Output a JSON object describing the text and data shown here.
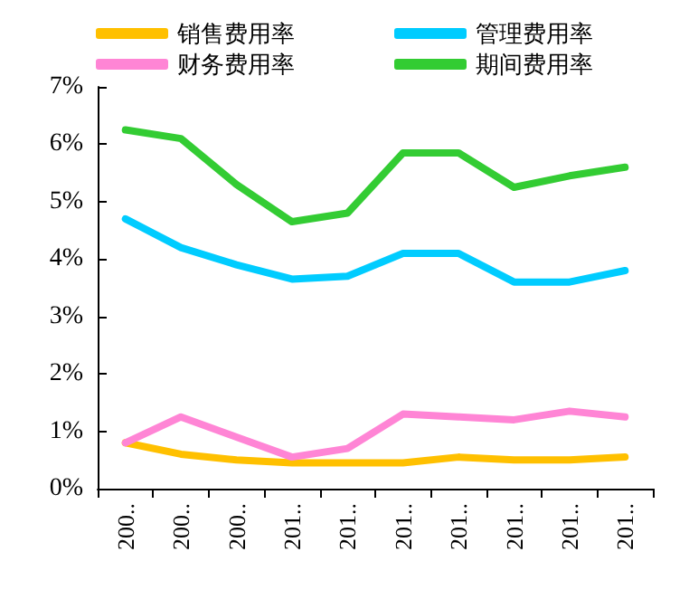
{
  "chart_data": {
    "type": "line",
    "categories": [
      "200..",
      "200..",
      "200..",
      "201..",
      "201..",
      "201..",
      "201..",
      "201..",
      "201..",
      "201.."
    ],
    "series": [
      {
        "name": "销售费用率",
        "color": "#ffc000",
        "values": [
          0.8,
          0.6,
          0.5,
          0.45,
          0.45,
          0.45,
          0.55,
          0.5,
          0.5,
          0.55
        ]
      },
      {
        "name": "管理费用率",
        "color": "#00ccff",
        "values": [
          4.7,
          4.2,
          3.9,
          3.65,
          3.7,
          4.1,
          4.1,
          3.6,
          3.6,
          3.8
        ]
      },
      {
        "name": "财务费用率",
        "color": "#ff85d5",
        "values": [
          0.8,
          1.25,
          0.9,
          0.55,
          0.7,
          1.3,
          1.25,
          1.2,
          1.35,
          1.25
        ]
      },
      {
        "name": "期间费用率",
        "color": "#33cc33",
        "values": [
          6.25,
          6.1,
          5.3,
          4.65,
          4.8,
          5.85,
          5.85,
          5.25,
          5.45,
          5.6
        ]
      }
    ],
    "ylim": [
      0,
      7
    ],
    "yticks": [
      {
        "value": 0,
        "label": "0%"
      },
      {
        "value": 1,
        "label": "1%"
      },
      {
        "value": 2,
        "label": "2%"
      },
      {
        "value": 3,
        "label": "3%"
      },
      {
        "value": 4,
        "label": "4%"
      },
      {
        "value": 5,
        "label": "5%"
      },
      {
        "value": 6,
        "label": "6%"
      },
      {
        "value": 7,
        "label": "7%"
      }
    ],
    "grid": false,
    "legend": "top",
    "marker": "none",
    "line_style": "solid"
  }
}
